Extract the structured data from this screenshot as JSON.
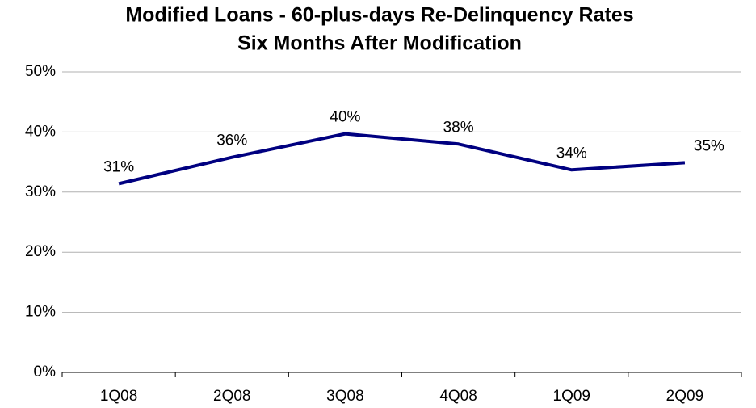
{
  "chart_data": {
    "type": "line",
    "title": "Modified Loans - 60-plus-days Re-Delinquency Rates",
    "subtitle": "Six Months After Modification",
    "categories": [
      "1Q08",
      "2Q08",
      "3Q08",
      "4Q08",
      "1Q09",
      "2Q09"
    ],
    "series": [
      {
        "color": "#000080",
        "values": [
          31.4,
          35.8,
          39.7,
          38.0,
          33.7,
          34.9
        ],
        "value_labels": [
          "31%",
          "36%",
          "40%",
          "38%",
          "34%",
          "35%"
        ]
      }
    ],
    "ylim": [
      0,
      50
    ],
    "yticks": [
      {
        "value": 0,
        "label": "0%"
      },
      {
        "value": 10,
        "label": "10%"
      },
      {
        "value": 20,
        "label": "20%"
      },
      {
        "value": 30,
        "label": "30%"
      },
      {
        "value": 40,
        "label": "40%"
      },
      {
        "value": 50,
        "label": "50%"
      }
    ],
    "grid": true
  }
}
